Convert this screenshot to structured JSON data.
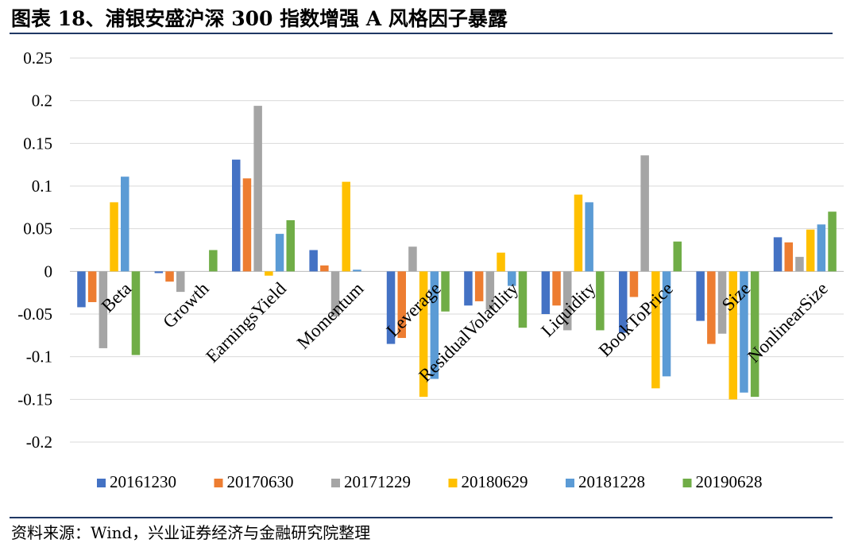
{
  "title": "图表 18、浦银安盛沪深 300 指数增强 A 风格因子暴露",
  "source": "资料来源：Wind，兴业证券经济与金融研究院整理",
  "chart_data": {
    "type": "bar",
    "categories": [
      "Beta",
      "Growth",
      "EarningsYield",
      "Momentum",
      "Leverage",
      "ResidualVolatility",
      "Liquidity",
      "BookToPrice",
      "Size",
      "NonlinearSize"
    ],
    "series": [
      {
        "name": "20161230",
        "color": "#4472c4",
        "values": [
          -0.042,
          -0.002,
          0.131,
          0.025,
          -0.085,
          -0.04,
          -0.05,
          -0.072,
          -0.058,
          0.04
        ]
      },
      {
        "name": "20170630",
        "color": "#ed7d31",
        "values": [
          -0.036,
          -0.012,
          0.109,
          0.007,
          -0.078,
          -0.035,
          -0.04,
          -0.03,
          -0.085,
          0.034
        ]
      },
      {
        "name": "20171229",
        "color": "#a5a5a5",
        "values": [
          -0.09,
          -0.024,
          0.194,
          -0.053,
          0.029,
          -0.045,
          -0.069,
          0.136,
          -0.073,
          0.017
        ]
      },
      {
        "name": "20180629",
        "color": "#ffc000",
        "values": [
          0.081,
          0.0,
          -0.005,
          0.105,
          -0.147,
          0.022,
          0.09,
          -0.137,
          -0.15,
          0.049
        ]
      },
      {
        "name": "20181228",
        "color": "#5b9bd5",
        "values": [
          0.111,
          0.0,
          0.044,
          0.002,
          -0.126,
          -0.017,
          0.081,
          -0.123,
          -0.142,
          0.055
        ]
      },
      {
        "name": "20190628",
        "color": "#70ad47",
        "values": [
          -0.098,
          0.025,
          0.06,
          0.0,
          -0.047,
          -0.066,
          -0.069,
          0.035,
          -0.147,
          0.07
        ]
      }
    ],
    "ylim": [
      -0.2,
      0.25
    ],
    "yticks": [
      "0.25",
      "0.2",
      "0.15",
      "0.1",
      "0.05",
      "0",
      "-0.05",
      "-0.1",
      "-0.15",
      "-0.2"
    ],
    "grid": true,
    "legend": "bottom"
  }
}
